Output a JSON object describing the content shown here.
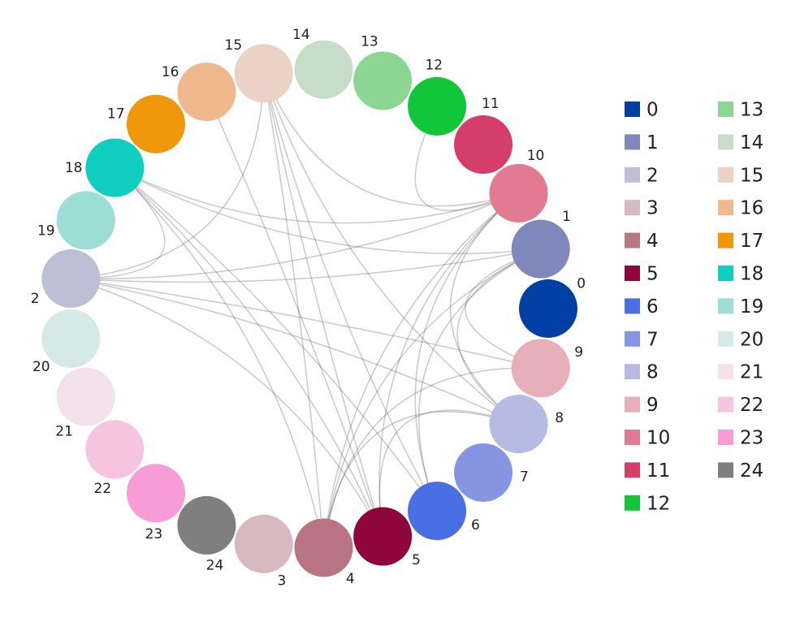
{
  "nodes": [
    {
      "label": "0",
      "color": "#003fa3"
    },
    {
      "label": "1",
      "color": "#7f88bb"
    },
    {
      "label": "10",
      "color": "#e07b91"
    },
    {
      "label": "11",
      "color": "#d33f6a"
    },
    {
      "label": "12",
      "color": "#11c638"
    },
    {
      "label": "13",
      "color": "#8dd593"
    },
    {
      "label": "14",
      "color": "#c6dec7"
    },
    {
      "label": "15",
      "color": "#ead3c6"
    },
    {
      "label": "16",
      "color": "#f0b98d"
    },
    {
      "label": "17",
      "color": "#ef9708"
    },
    {
      "label": "18",
      "color": "#0fcfc0"
    },
    {
      "label": "19",
      "color": "#9cded6"
    },
    {
      "label": "2",
      "color": "#bdc0d4"
    },
    {
      "label": "20",
      "color": "#d5eae7"
    },
    {
      "label": "21",
      "color": "#f3e1eb"
    },
    {
      "label": "22",
      "color": "#f6c4e1"
    },
    {
      "label": "23",
      "color": "#f79cd4"
    },
    {
      "label": "24",
      "color": "#7f7f7f"
    },
    {
      "label": "3",
      "color": "#d7bac0"
    },
    {
      "label": "4",
      "color": "#b97682"
    },
    {
      "label": "5",
      "color": "#8e063b"
    },
    {
      "label": "6",
      "color": "#4a6fe3"
    },
    {
      "label": "7",
      "color": "#8595e1"
    },
    {
      "label": "8",
      "color": "#b5bbe3"
    },
    {
      "label": "9",
      "color": "#e6afb9"
    }
  ],
  "edges": [
    [
      "18",
      "1"
    ],
    [
      "18",
      "10"
    ],
    [
      "18",
      "5"
    ],
    [
      "18",
      "6"
    ],
    [
      "18",
      "4"
    ],
    [
      "18",
      "2"
    ],
    [
      "2",
      "1"
    ],
    [
      "2",
      "10"
    ],
    [
      "2",
      "8"
    ],
    [
      "2",
      "9"
    ],
    [
      "2",
      "5"
    ],
    [
      "15",
      "4"
    ],
    [
      "15",
      "5"
    ],
    [
      "15",
      "6"
    ],
    [
      "15",
      "8"
    ],
    [
      "15",
      "2"
    ],
    [
      "15",
      "10"
    ],
    [
      "12",
      "10"
    ],
    [
      "4",
      "10"
    ],
    [
      "4",
      "1"
    ],
    [
      "4",
      "8"
    ],
    [
      "4",
      "9"
    ],
    [
      "5",
      "10"
    ],
    [
      "5",
      "8"
    ],
    [
      "6",
      "10"
    ],
    [
      "6",
      "1"
    ],
    [
      "8",
      "10"
    ],
    [
      "8",
      "1"
    ],
    [
      "9",
      "1"
    ],
    [
      "16",
      "5"
    ]
  ],
  "legend": [
    {
      "label": "0",
      "color": "#003fa3"
    },
    {
      "label": "1",
      "color": "#7f88bb"
    },
    {
      "label": "2",
      "color": "#bdc0d4"
    },
    {
      "label": "3",
      "color": "#d7bac0"
    },
    {
      "label": "4",
      "color": "#b97682"
    },
    {
      "label": "5",
      "color": "#8e063b"
    },
    {
      "label": "6",
      "color": "#4a6fe3"
    },
    {
      "label": "7",
      "color": "#8595e1"
    },
    {
      "label": "8",
      "color": "#b5bbe3"
    },
    {
      "label": "9",
      "color": "#e6afb9"
    },
    {
      "label": "10",
      "color": "#e07b91"
    },
    {
      "label": "11",
      "color": "#d33f6a"
    },
    {
      "label": "12",
      "color": "#11c638"
    },
    {
      "label": "13",
      "color": "#8dd593"
    },
    {
      "label": "14",
      "color": "#c6dec7"
    },
    {
      "label": "15",
      "color": "#ead3c6"
    },
    {
      "label": "16",
      "color": "#f0b98d"
    },
    {
      "label": "17",
      "color": "#ef9708"
    },
    {
      "label": "18",
      "color": "#0fcfc0"
    },
    {
      "label": "19",
      "color": "#9cded6"
    },
    {
      "label": "20",
      "color": "#d5eae7"
    },
    {
      "label": "21",
      "color": "#f3e1eb"
    },
    {
      "label": "22",
      "color": "#f6c4e1"
    },
    {
      "label": "23",
      "color": "#f79cd4"
    },
    {
      "label": "24",
      "color": "#7f7f7f"
    }
  ]
}
